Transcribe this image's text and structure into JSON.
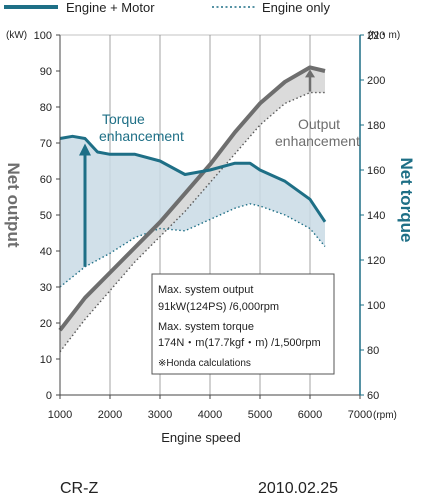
{
  "legend": {
    "engine_motor": "Engine + Motor",
    "engine_only": "Engine only"
  },
  "footer": {
    "model": "CR-Z",
    "date": "2010.02.25"
  },
  "colors": {
    "engine_motor_output": "#6e6e6e",
    "engine_motor_torque": "#1e6f86",
    "output_band_fill": "#d9d9d9",
    "torque_band_fill": "#c9dbe5",
    "grid": "#8c8c8c"
  },
  "chart_data": {
    "type": "line",
    "xlabel": "Engine speed",
    "x_unit": "(rpm)",
    "xlim": [
      1000,
      7000
    ],
    "x_ticks": [
      1000,
      2000,
      3000,
      4000,
      5000,
      6000,
      7000
    ],
    "left_axis": {
      "title": "Net output",
      "unit": "(kW)",
      "range": [
        0,
        100
      ],
      "ticks": [
        0,
        10,
        20,
        30,
        40,
        50,
        60,
        70,
        80,
        90,
        100
      ]
    },
    "right_axis": {
      "title": "Net torque",
      "unit": "(N・m)",
      "range": [
        60,
        220
      ],
      "ticks": [
        60,
        80,
        100,
        120,
        140,
        160,
        180,
        200,
        220
      ]
    },
    "grid": "vertical",
    "series": [
      {
        "name": "Engine + Motor",
        "quantity": "output",
        "style": "solid",
        "x": [
          1000,
          1500,
          2000,
          2500,
          3000,
          3500,
          4000,
          4500,
          5000,
          5500,
          6000,
          6300
        ],
        "y": [
          18,
          27,
          34,
          41,
          48,
          56,
          64,
          73,
          81,
          87,
          91,
          90
        ]
      },
      {
        "name": "Engine only",
        "quantity": "output",
        "style": "dotted",
        "x": [
          1000,
          1500,
          2000,
          2500,
          3000,
          3500,
          4000,
          4500,
          5000,
          5500,
          6000,
          6300
        ],
        "y": [
          12,
          21,
          29,
          37,
          44,
          51,
          59,
          67,
          75,
          81,
          84,
          84
        ]
      },
      {
        "name": "Engine + Motor",
        "quantity": "torque",
        "style": "solid",
        "x": [
          1000,
          1250,
          1500,
          1750,
          2000,
          2500,
          3000,
          3500,
          4000,
          4500,
          4800,
          5000,
          5500,
          6000,
          6300
        ],
        "y": [
          174,
          175,
          174,
          168,
          167,
          167,
          164,
          158,
          160,
          163,
          163,
          160,
          155,
          147,
          137
        ]
      },
      {
        "name": "Engine only",
        "quantity": "torque",
        "style": "dotted",
        "x": [
          1000,
          1500,
          2000,
          2500,
          3000,
          3500,
          4000,
          4500,
          4800,
          5000,
          5500,
          6000,
          6300
        ],
        "y": [
          108,
          117,
          123,
          130,
          134,
          133,
          138,
          143,
          145,
          144,
          140,
          134,
          126
        ]
      }
    ],
    "annotations": {
      "torque_enhancement": [
        "Torque",
        "enhancement"
      ],
      "output_enhancement": [
        "Output",
        "enhancement"
      ],
      "info_box": {
        "line1": "Max. system output",
        "line2": "91kW(124PS) /6,000rpm",
        "line3": "Max. system torque",
        "line4": "174N・m(17.7kgf・m) /1,500rpm",
        "line5": "※Honda calculations"
      }
    }
  }
}
